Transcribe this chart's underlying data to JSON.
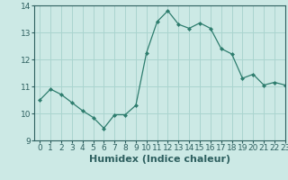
{
  "x": [
    0,
    1,
    2,
    3,
    4,
    5,
    6,
    7,
    8,
    9,
    10,
    11,
    12,
    13,
    14,
    15,
    16,
    17,
    18,
    19,
    20,
    21,
    22,
    23
  ],
  "y": [
    10.5,
    10.9,
    10.7,
    10.4,
    10.1,
    9.85,
    9.45,
    9.95,
    9.95,
    10.3,
    12.25,
    13.4,
    13.8,
    13.3,
    13.15,
    13.35,
    13.15,
    12.4,
    12.2,
    11.3,
    11.45,
    11.05,
    11.15,
    11.05
  ],
  "line_color": "#2e7d6e",
  "marker": "D",
  "marker_size": 2,
  "bg_color": "#cce9e5",
  "grid_color": "#aad4cf",
  "xlabel": "Humidex (Indice chaleur)",
  "ylim": [
    9,
    14
  ],
  "xlim": [
    -0.5,
    23
  ],
  "yticks": [
    9,
    10,
    11,
    12,
    13,
    14
  ],
  "xticks": [
    0,
    1,
    2,
    3,
    4,
    5,
    6,
    7,
    8,
    9,
    10,
    11,
    12,
    13,
    14,
    15,
    16,
    17,
    18,
    19,
    20,
    21,
    22,
    23
  ],
  "tick_fontsize": 6.5,
  "xlabel_fontsize": 8,
  "tick_color": "#2e6060"
}
